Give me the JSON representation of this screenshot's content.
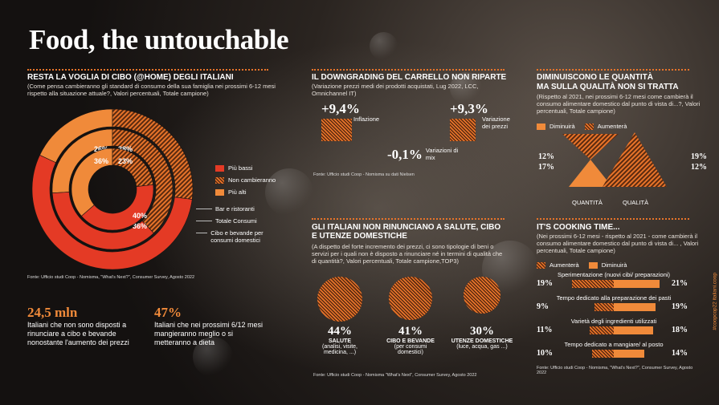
{
  "title": "Food, the untouchable",
  "vertical_tag": "#coopcop22 italiani.coop",
  "s1": {
    "heading": "RESTA LA VOGLIA DI CIBO (@HOME) DEGLI ITALIANI",
    "sub": "(Come pensa cambieranno gli standard di consumo della sua famiglia nei prossimi 6-12 mesi rispetto alla situazione attuale?, Valori percentuali, Totale campione)",
    "legend": [
      "Più bassi",
      "Non cambieranno",
      "Più alti"
    ],
    "ring_legend": [
      "Bar e ristoranti",
      "Totale Consumi",
      "Cibo e bevande per consumi domestici"
    ],
    "source": "Fonte: Ufficio studi Coop - Nomisma, \"What's Next?\", Consumer Survey, Agosto 2022"
  },
  "stats": {
    "a_value": "24,5 mln",
    "a_text": "Italiani che non sono disposti a rinunciare a cibo e bevande nonostante l'aumento dei prezzi",
    "b_value": "47%",
    "b_text": "Italiani che nei prossimi 6/12 mesi mangieranno meglio o si metteranno a dieta"
  },
  "s2": {
    "heading": "IL DOWNGRADING DEL CARRELLO NON RIPARTE",
    "sub": "(Variazione prezzi medi dei prodotti acquistati, Lug 2022, LCC, Omnichannel IT)",
    "items": [
      {
        "value": "+9,4%",
        "label": "Inflazione"
      },
      {
        "value": "+9,3%",
        "label": "Variazione dei prezzi"
      },
      {
        "value": "-0,1%",
        "label": "Variazioni di mix"
      }
    ],
    "source": "Fonte: Ufficio studi Coop - Nomisma su dati Nielsen"
  },
  "s3": {
    "heading1": "DIMINUISCONO LE QUANTITÀ",
    "heading2": "MA SULLA QUALITÀ NON SI TRATTA",
    "sub": "(Rispetto al 2021, nei prossimi 6-12 mesi come cambierà il consumo alimentare domestico dal punto di vista di...?, Valori percentuali, Totale campione)",
    "legend": [
      "Diminuirà",
      "Aumenterà"
    ],
    "labels": [
      "QUANTITÀ",
      "QUALITÀ"
    ],
    "values": {
      "q_aum": "12%",
      "q_dim": "17%",
      "ql_aum": "19%",
      "ql_dim": "12%"
    }
  },
  "s4": {
    "heading": "GLI ITALIANI NON RINUNCIANO A SALUTE, CIBO E UTENZE DOMESTICHE",
    "sub": "(A dispetto del forte incremento dei prezzi, ci sono tipologie di beni o servizi per i quali non è disposto a rinunciare né in termini di qualità che di quantità?, Valori percentuali, Totale campione,TOP3)",
    "items": [
      {
        "pct": "44%",
        "label": "SALUTE",
        "detail": "(analisi, visite, medicina, ...)"
      },
      {
        "pct": "41%",
        "label": "CIBO E BEVANDE",
        "detail": "(per consumi domestici)"
      },
      {
        "pct": "30%",
        "label": "UTENZE DOMESTICHE",
        "detail": "(luce, acqua, gas ...)"
      }
    ],
    "source": "Fonte: Ufficio studi Coop - Nomisma \"What's Next\", Consumer Survey, Agosto 2022"
  },
  "s5": {
    "heading": "IT'S COOKING TIME...",
    "sub": "(Nei prossimi 6-12 mesi - rispetto al 2021 - come cambierà il consumo alimentare domestico dal punto di vista di... , Valori percentuali, Totale campione)",
    "legend": [
      "Aumenterà",
      "Diminuirà"
    ],
    "source": "Fonte: Ufficio studi Coop - Nomisma, \"What's Next?\", Consumer Survey, Agosto 2022"
  },
  "colors": {
    "red": "#e43a25",
    "orange": "#f08a3a",
    "hatch": "#e8742a"
  },
  "chart_data": [
    {
      "type": "pie",
      "title": "",
      "categories": [
        "Più bassi",
        "Non cambieranno",
        "Più alti"
      ],
      "series": [
        {
          "name": "Bar e ristoranti",
          "values": [
            55,
            27,
            18
          ],
          "labels": [
            "55%",
            "27%",
            "18%"
          ]
        },
        {
          "name": "Totale Consumi",
          "values": [
            36,
            38,
            26
          ],
          "labels": [
            "36%",
            "38%",
            "26%"
          ]
        },
        {
          "name": "Cibo e bevande per consumi domestici",
          "values": [
            40,
            23,
            36
          ],
          "labels": [
            "40%",
            "23%",
            "36%"
          ]
        }
      ]
    },
    {
      "type": "bar",
      "categories": [
        "Sperimentazione (nuovi cibi/ preparazioni)",
        "Tempo dedicato alla preparazione dei pasti",
        "Varietà degli ingredienti utilizzati",
        "Tempo dedicato a mangiare/ al posto"
      ],
      "series": [
        {
          "name": "Aumenterà",
          "values": [
            19,
            9,
            11,
            10
          ],
          "labels": [
            "19%",
            "9%",
            "11%",
            "10%"
          ]
        },
        {
          "name": "Diminuirà",
          "values": [
            21,
            19,
            18,
            14
          ],
          "labels": [
            "21%",
            "19%",
            "18%",
            "14%"
          ]
        }
      ]
    }
  ]
}
